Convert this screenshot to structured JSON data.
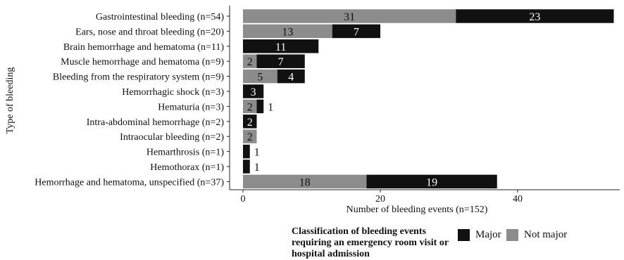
{
  "chart_data": {
    "type": "bar",
    "orientation": "horizontal",
    "stacked": true,
    "categories": [
      "Gastrointestinal bleeding (n=54)",
      "Ears, nose and throat bleeding (n=20)",
      "Brain hemorrhage and hematoma (n=11)",
      "Muscle hemorrhage and hematoma (n=9)",
      "Bleeding from the respiratory system (n=9)",
      "Hemorrhagic shock (n=3)",
      "Hematuria (n=3)",
      "Intra-abdominal hemorrhage (n=2)",
      "Intraocular bleeding (n=2)",
      "Hemarthrosis (n=1)",
      "Hemothorax (n=1)",
      "Hemorrhage and hematoma, unspecified (n=37)"
    ],
    "series": [
      {
        "name": "Not major",
        "color": "#8c8c8c",
        "values": [
          31,
          13,
          0,
          2,
          5,
          0,
          2,
          0,
          2,
          0,
          0,
          18
        ]
      },
      {
        "name": "Major",
        "color": "#111111",
        "values": [
          23,
          7,
          11,
          7,
          4,
          3,
          1,
          2,
          0,
          1,
          1,
          19
        ]
      }
    ],
    "xlabel": "Number of bleeding events (n=152)",
    "ylabel": "Type of bleeding",
    "xlim": [
      0,
      55
    ],
    "xticks": [
      0,
      20,
      40
    ],
    "grid": false,
    "legend": {
      "title": "Classification of bleeding events requiring an emergency room visit or hospital admission",
      "position": "bottom",
      "entries": [
        "Major",
        "Not major"
      ]
    }
  }
}
